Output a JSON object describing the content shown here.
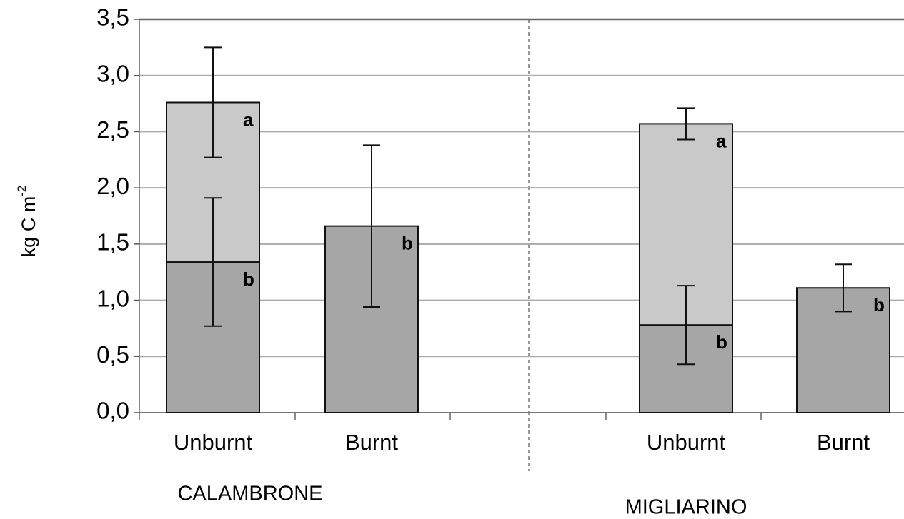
{
  "chart_data": {
    "type": "stacked-bar",
    "y_label": "kg C m",
    "y_label_sup": "-2",
    "categories": [
      "Unburnt",
      "Burnt",
      "Unburnt",
      "Burnt"
    ],
    "groups": [
      "CALAMBRONE",
      "MIGLIARINO"
    ],
    "series": [
      {
        "color": "#a6a6a6",
        "values": [
          1.34,
          1.66,
          0.78,
          1.11
        ],
        "errors": [
          0.57,
          0.72,
          0.35,
          0.21
        ],
        "letters": [
          "b",
          "b",
          "b",
          "b"
        ]
      },
      {
        "color": "#c9c9c9",
        "values": [
          1.42,
          null,
          1.79,
          null
        ],
        "errors": [
          0.49,
          null,
          0.14,
          null
        ],
        "letters": [
          "a",
          null,
          "a",
          null
        ]
      }
    ],
    "ylim": [
      0,
      3.5
    ],
    "yticks": [
      {
        "value": 0,
        "label": "0,0"
      },
      {
        "value": 0.5,
        "label": "0,5"
      },
      {
        "value": 1,
        "label": "1,0"
      },
      {
        "value": 1.5,
        "label": "1,5"
      },
      {
        "value": 2,
        "label": "2,0"
      },
      {
        "value": 2.5,
        "label": "2,5"
      },
      {
        "value": 3,
        "label": "3,0"
      },
      {
        "value": 3.5,
        "label": "3,5"
      }
    ],
    "grid": true
  }
}
